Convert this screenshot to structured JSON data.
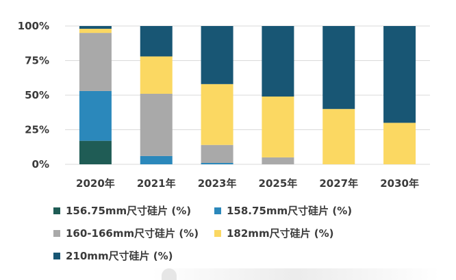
{
  "chart_data": {
    "type": "bar",
    "stacked": true,
    "categories": [
      "2020年",
      "2021年",
      "2023年",
      "2025年",
      "2027年",
      "2030年"
    ],
    "yticks": [
      "0%",
      "25%",
      "50%",
      "75%",
      "100%"
    ],
    "ylim": [
      0,
      100
    ],
    "grid": true,
    "series": [
      {
        "name": "156.75mm尺寸硅片 (%)",
        "color": "#1f5c55",
        "values": [
          17,
          0,
          0,
          0,
          0,
          0
        ]
      },
      {
        "name": "158.75mm尺寸硅片 (%)",
        "color": "#2b88bb",
        "values": [
          36,
          6,
          1,
          0,
          0,
          0
        ]
      },
      {
        "name": "160-166mm尺寸硅片 (%)",
        "color": "#a9a9a9",
        "values": [
          42,
          45,
          13,
          5,
          0,
          0
        ]
      },
      {
        "name": "182mm尺寸硅片 (%)",
        "color": "#fbd862",
        "values": [
          3,
          27,
          44,
          44,
          40,
          30
        ]
      },
      {
        "name": "210mm尺寸硅片 (%)",
        "color": "#185674",
        "values": [
          2,
          22,
          42,
          51,
          60,
          70
        ]
      }
    ]
  }
}
